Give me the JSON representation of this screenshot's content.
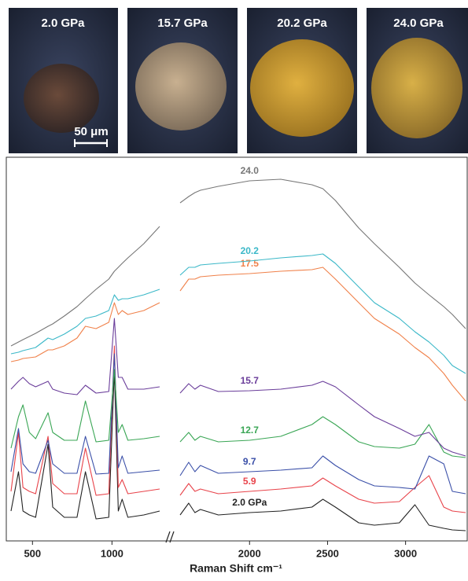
{
  "photos": [
    {
      "label": "2.0 GPa"
    },
    {
      "label": "15.7 GPa"
    },
    {
      "label": "20.2 GPa"
    },
    {
      "label": "24.0 GPa"
    }
  ],
  "scale_bar": "50 μm",
  "chart_data": {
    "type": "line",
    "x_label": "Raman Shift cm⁻¹",
    "xlim": [
      360,
      3390
    ],
    "xbreak": [
      1310,
      1550
    ],
    "xticks": [
      500,
      1000,
      2000,
      2500,
      3000
    ],
    "ylim": [
      0,
      480
    ],
    "x": [
      365,
      412,
      440,
      480,
      520,
      598,
      627,
      700,
      780,
      833,
      900,
      980,
      1015,
      1040,
      1064,
      1100,
      1200,
      1300,
      1555,
      1610,
      1650,
      1685,
      1800,
      2000,
      2200,
      2400,
      2470,
      2550,
      2700,
      2800,
      2960,
      3060,
      3150,
      3245,
      3300,
      3385
    ],
    "series": [
      {
        "name": "2.0 GPa",
        "color": "#222222",
        "values": [
          30,
          80,
          30,
          25,
          22,
          115,
          35,
          22,
          22,
          80,
          20,
          22,
          210,
          30,
          45,
          22,
          25,
          30,
          25,
          40,
          28,
          32,
          25,
          28,
          30,
          35,
          45,
          35,
          15,
          12,
          15,
          38,
          12,
          8,
          6,
          5
        ]
      },
      {
        "name": "5.9",
        "color": "#e8434a",
        "values": [
          55,
          130,
          60,
          55,
          52,
          125,
          65,
          52,
          52,
          110,
          50,
          52,
          240,
          60,
          70,
          52,
          55,
          58,
          50,
          65,
          55,
          58,
          52,
          55,
          58,
          62,
          72,
          62,
          45,
          40,
          42,
          60,
          75,
          35,
          30,
          28
        ]
      },
      {
        "name": "9.7",
        "color": "#3a4fa8",
        "values": [
          80,
          135,
          90,
          80,
          78,
          120,
          90,
          78,
          78,
          125,
          77,
          78,
          230,
          85,
          100,
          78,
          80,
          82,
          75,
          92,
          80,
          88,
          78,
          80,
          82,
          85,
          100,
          88,
          70,
          62,
          60,
          58,
          100,
          90,
          55,
          52
        ]
      },
      {
        "name": "12.7",
        "color": "#3aa655",
        "values": [
          110,
          150,
          165,
          130,
          122,
          155,
          130,
          120,
          120,
          170,
          118,
          120,
          210,
          130,
          140,
          120,
          122,
          125,
          118,
          130,
          120,
          125,
          118,
          120,
          125,
          140,
          150,
          140,
          118,
          112,
          110,
          115,
          140,
          105,
          100,
          98
        ]
      },
      {
        "name": "15.7",
        "color": "#6a3d9a",
        "values": [
          185,
          195,
          200,
          192,
          188,
          195,
          185,
          180,
          178,
          190,
          180,
          182,
          275,
          200,
          200,
          185,
          185,
          188,
          180,
          192,
          185,
          190,
          182,
          183,
          185,
          190,
          195,
          188,
          165,
          150,
          135,
          125,
          130,
          110,
          105,
          100
        ]
      },
      {
        "name": "17.5",
        "color": "#f0814a",
        "values": [
          220,
          222,
          224,
          225,
          226,
          235,
          235,
          240,
          250,
          265,
          262,
          270,
          295,
          280,
          285,
          280,
          285,
          295,
          310,
          325,
          325,
          328,
          330,
          332,
          335,
          337,
          340,
          325,
          295,
          275,
          255,
          238,
          225,
          205,
          190,
          170
        ]
      },
      {
        "name": "20.2",
        "color": "#3bb8c8",
        "values": [
          230,
          232,
          234,
          236,
          238,
          250,
          248,
          255,
          265,
          275,
          278,
          285,
          305,
          298,
          300,
          300,
          305,
          312,
          330,
          340,
          340,
          343,
          345,
          348,
          352,
          355,
          357,
          345,
          315,
          295,
          275,
          258,
          245,
          228,
          215,
          205
        ]
      },
      {
        "name": "24.0",
        "color": "#777777",
        "values": [
          240,
          245,
          248,
          252,
          256,
          265,
          268,
          278,
          290,
          300,
          312,
          325,
          335,
          340,
          345,
          352,
          370,
          392,
          422,
          430,
          435,
          438,
          443,
          450,
          452,
          445,
          440,
          425,
          390,
          370,
          340,
          320,
          305,
          290,
          280,
          262
        ]
      }
    ]
  }
}
